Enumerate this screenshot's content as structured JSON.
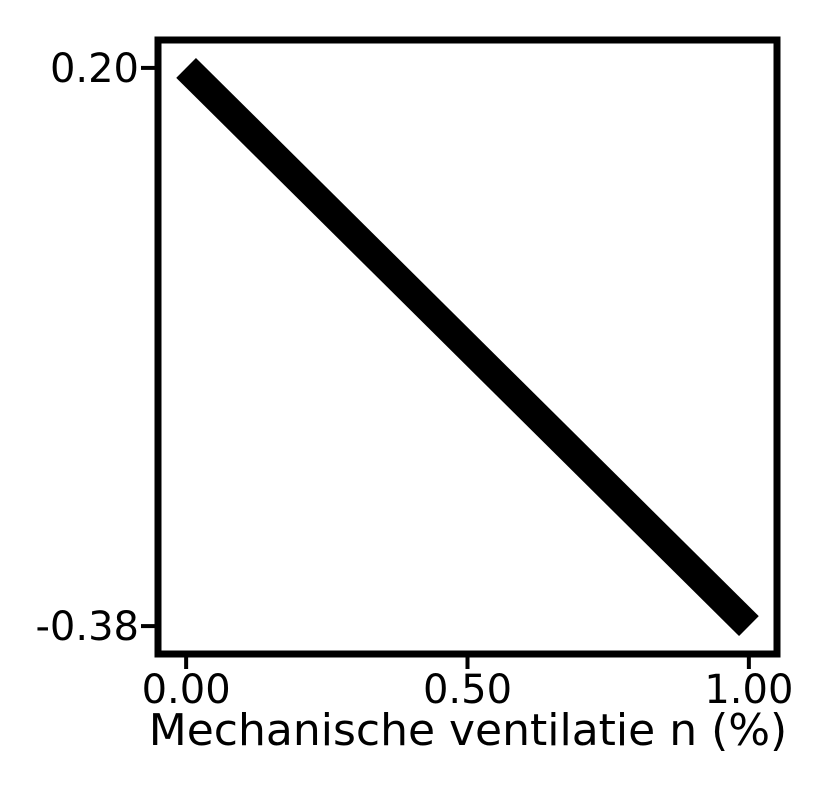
{
  "chart_data": {
    "type": "line",
    "title": "",
    "xlabel": "Mechanische ventilatie n (%)",
    "ylabel": "",
    "x": [
      0.0,
      1.0
    ],
    "series": [
      {
        "values": [
          0.2,
          -0.38
        ],
        "color": "#000000"
      }
    ],
    "xticks": [
      0.0,
      0.5,
      1.0
    ],
    "xtick_labels": [
      "0.00",
      "0.50",
      "1.00"
    ],
    "yticks": [
      0.2,
      -0.38
    ],
    "ytick_labels": [
      "0.20",
      "-0.38"
    ],
    "xlim": [
      -0.05,
      1.05
    ],
    "ylim": [
      -0.409,
      0.229
    ],
    "grid": false,
    "legend": "none"
  }
}
